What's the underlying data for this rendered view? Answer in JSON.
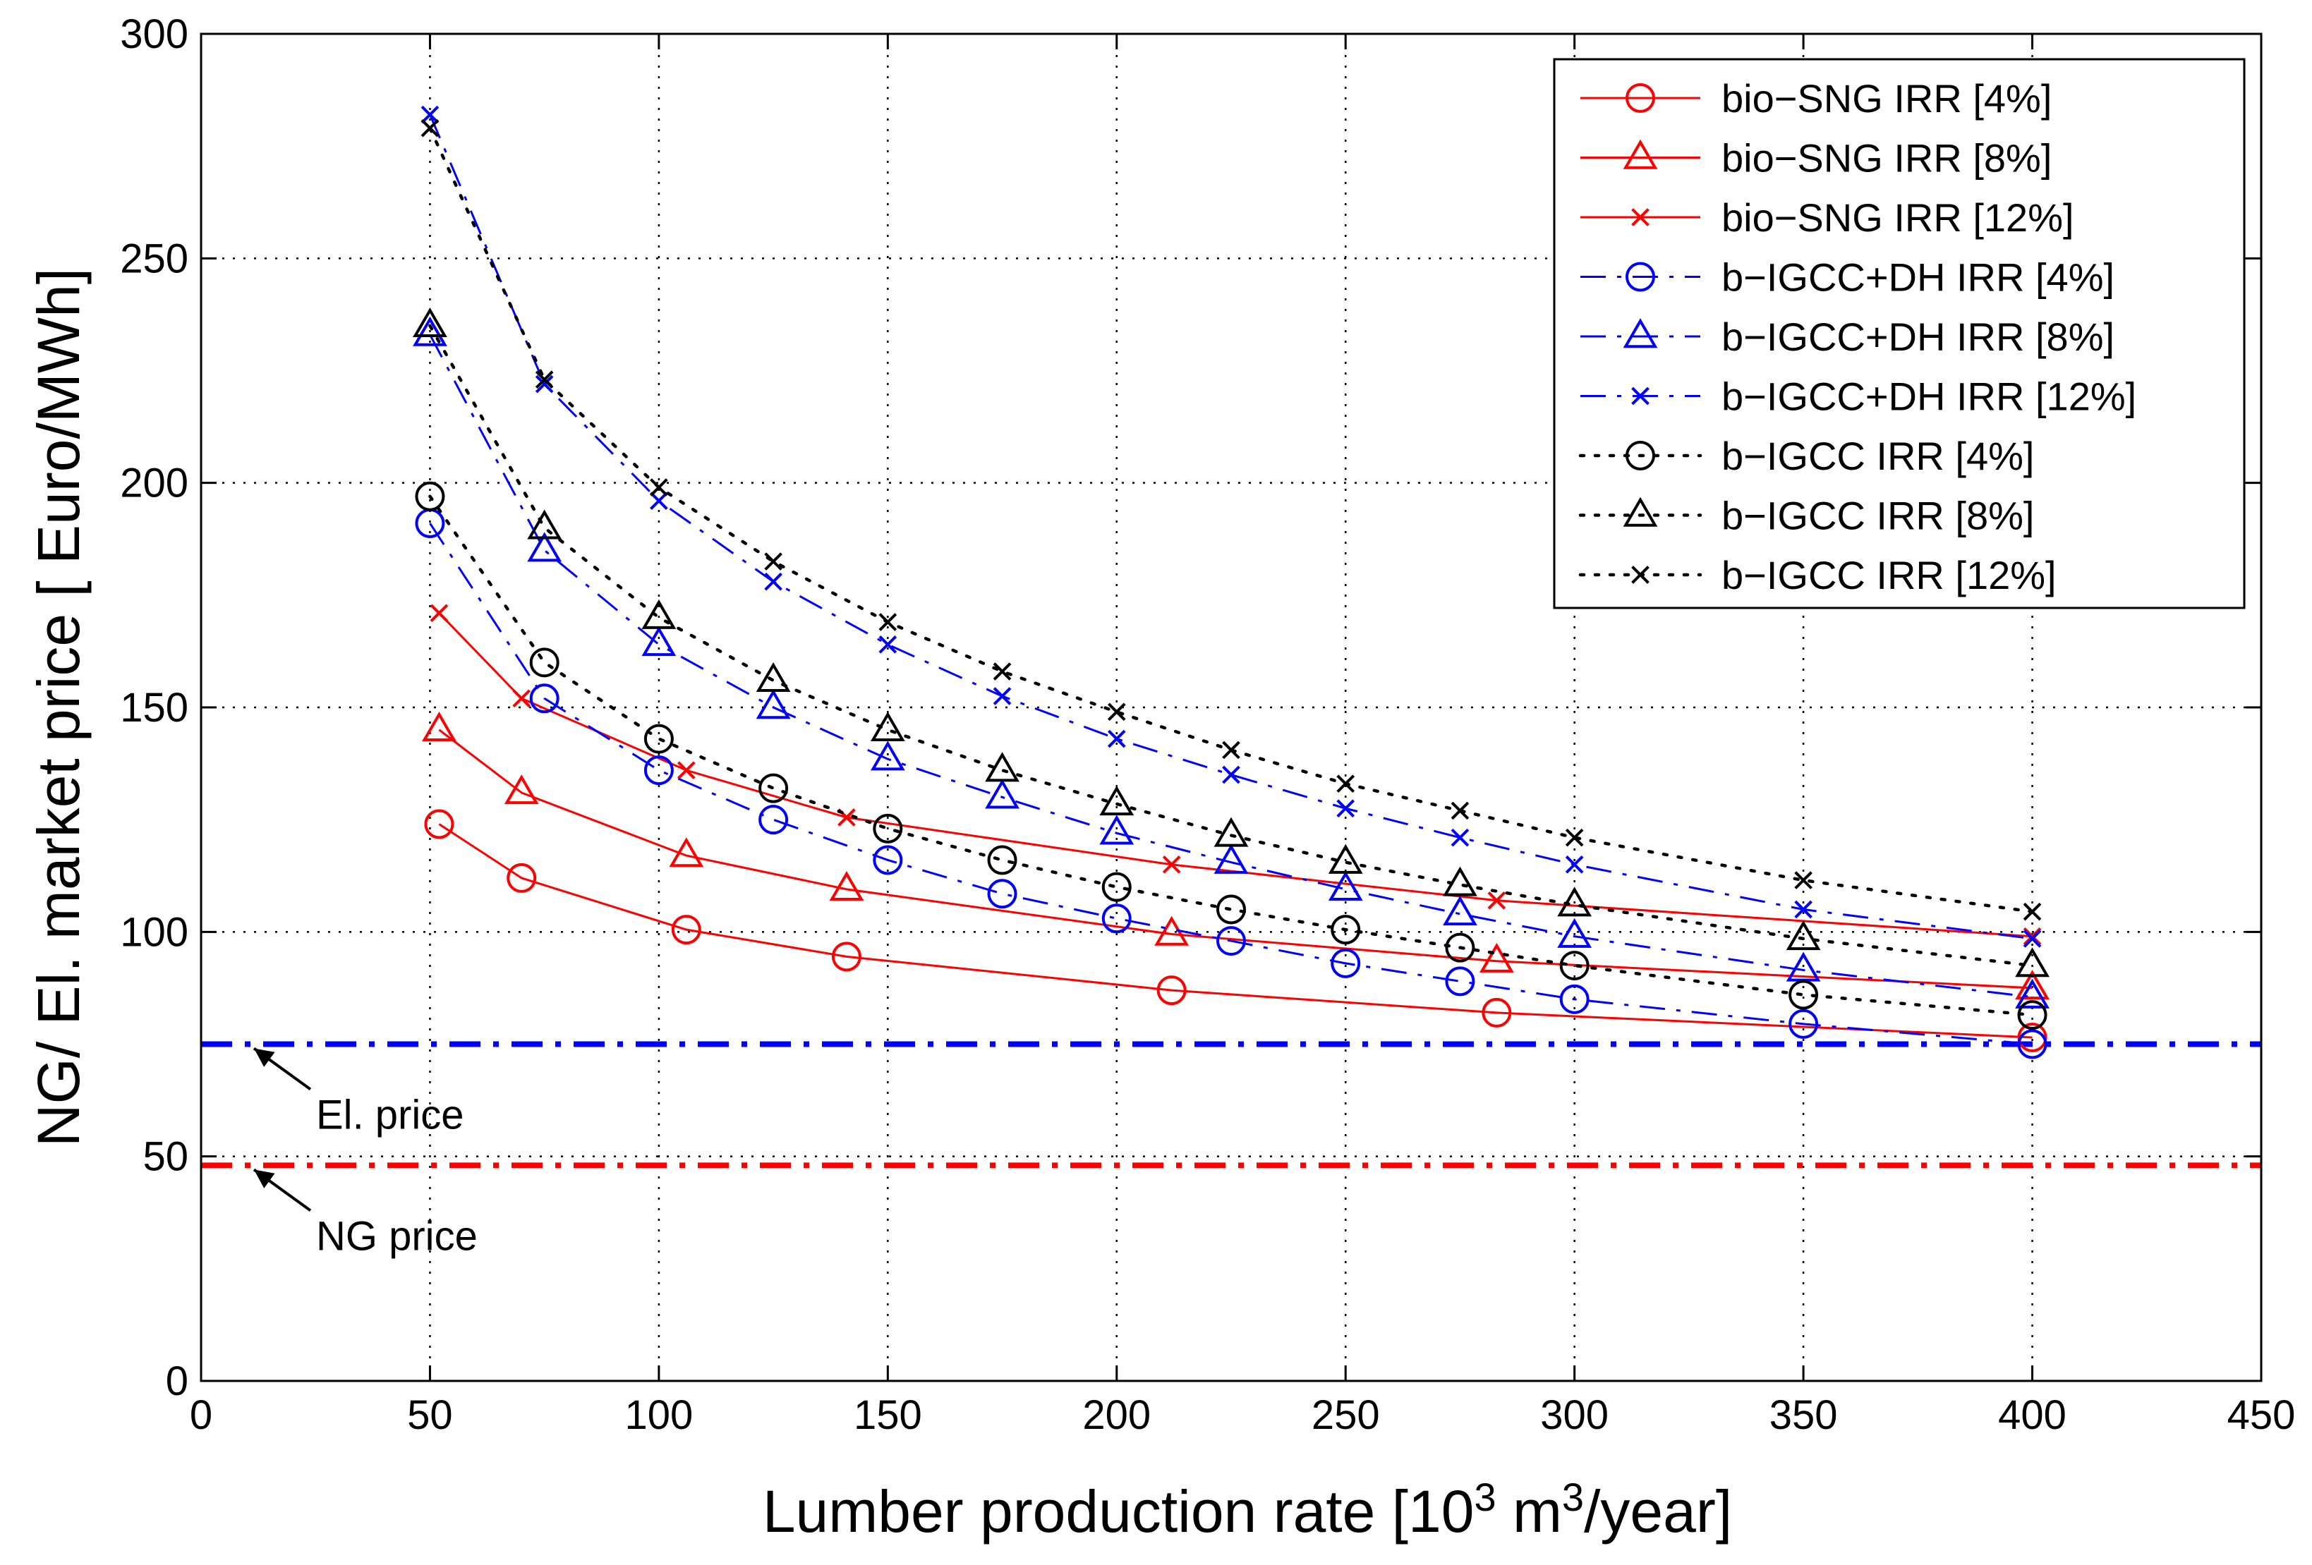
{
  "chart_data": {
    "type": "line",
    "title": "",
    "xlabel": "Lumber production rate [10",
    "xlabel_sup1": "3",
    "xlabel_mid": " m",
    "xlabel_sup2": "3",
    "xlabel_end": "/year]",
    "ylabel": "NG/ El. market price [ Euro/MWh]",
    "xlim": [
      0,
      450
    ],
    "ylim": [
      0,
      300
    ],
    "xticks": [
      0,
      50,
      100,
      150,
      200,
      250,
      300,
      350,
      400,
      450
    ],
    "yticks": [
      0,
      50,
      100,
      150,
      200,
      250,
      300
    ],
    "grid": true,
    "legend_position": "top-right",
    "series": [
      {
        "name": "bio−SNG IRR [4%]",
        "color": "#ff0000",
        "line": "solid",
        "marker": "circle",
        "x": [
          52,
          70,
          106,
          141,
          212,
          283,
          400
        ],
        "y": [
          124,
          112,
          100.5,
          94.5,
          87,
          82,
          76.5
        ]
      },
      {
        "name": "bio−SNG IRR [8%]",
        "color": "#ff0000",
        "line": "solid",
        "marker": "triangle",
        "x": [
          52,
          70,
          106,
          141,
          212,
          283,
          400
        ],
        "y": [
          145,
          131,
          117,
          109.5,
          99.5,
          93.5,
          87.5
        ]
      },
      {
        "name": "bio−SNG IRR [12%]",
        "color": "#ff0000",
        "line": "solid",
        "marker": "x",
        "x": [
          52,
          70,
          106,
          141,
          212,
          283,
          400
        ],
        "y": [
          171,
          152,
          136,
          125.5,
          115,
          107,
          99
        ]
      },
      {
        "name": "b−IGCC+DH IRR [4%]",
        "color": "#0000ff",
        "line": "dashdot",
        "marker": "circle",
        "x": [
          50,
          75,
          100,
          125,
          150,
          175,
          200,
          225,
          250,
          275,
          300,
          350,
          400
        ],
        "y": [
          191,
          152,
          136,
          125,
          116,
          108.5,
          103,
          98,
          93,
          89,
          85,
          79.5,
          75
        ]
      },
      {
        "name": "b−IGCC+DH IRR [8%]",
        "color": "#0000ff",
        "line": "dashdot",
        "marker": "triangle",
        "x": [
          50,
          75,
          100,
          125,
          150,
          175,
          200,
          225,
          250,
          275,
          300,
          350,
          400
        ],
        "y": [
          233,
          185,
          164,
          150,
          138.5,
          130,
          122,
          115.5,
          109.5,
          104,
          99,
          91.5,
          85.5
        ]
      },
      {
        "name": "b−IGCC+DH IRR [12%]",
        "color": "#0000ff",
        "line": "dashdot",
        "marker": "x",
        "x": [
          50,
          75,
          100,
          125,
          150,
          175,
          200,
          225,
          250,
          275,
          300,
          350,
          400
        ],
        "y": [
          282,
          222,
          196,
          178,
          164,
          152.5,
          143,
          135,
          127.5,
          121,
          115,
          105,
          98.5
        ]
      },
      {
        "name": "b−IGCC IRR [4%]",
        "color": "#000000",
        "line": "dotted",
        "marker": "circle",
        "x": [
          50,
          75,
          100,
          125,
          150,
          175,
          200,
          225,
          250,
          275,
          300,
          350,
          400
        ],
        "y": [
          197,
          160,
          143,
          132,
          123,
          116,
          110,
          105,
          100.5,
          96.5,
          92.5,
          86,
          81.5
        ]
      },
      {
        "name": "b−IGCC IRR [8%]",
        "color": "#000000",
        "line": "dotted",
        "marker": "triangle",
        "x": [
          50,
          75,
          100,
          125,
          150,
          175,
          200,
          225,
          250,
          275,
          300,
          350,
          400
        ],
        "y": [
          235,
          190,
          170,
          156,
          145,
          136,
          128.5,
          121.5,
          115.5,
          110.5,
          106,
          98.5,
          92.5
        ]
      },
      {
        "name": "b−IGCC IRR [12%]",
        "color": "#000000",
        "line": "dotted",
        "marker": "x",
        "x": [
          50,
          75,
          100,
          125,
          150,
          175,
          200,
          225,
          250,
          275,
          300,
          350,
          400
        ],
        "y": [
          279,
          223,
          199,
          182.5,
          169,
          158,
          149,
          140.5,
          133,
          127,
          121,
          111.5,
          104.5
        ]
      }
    ],
    "reference_lines": [
      {
        "name": "El. price",
        "value": 75,
        "color": "#0000ff",
        "line": "dashdot"
      },
      {
        "name": "NG price",
        "value": 48,
        "color": "#ff0000",
        "line": "dashdot"
      }
    ],
    "annotations": [
      {
        "text": "El. price",
        "target_y": 75
      },
      {
        "text": "NG price",
        "target_y": 48
      }
    ]
  }
}
